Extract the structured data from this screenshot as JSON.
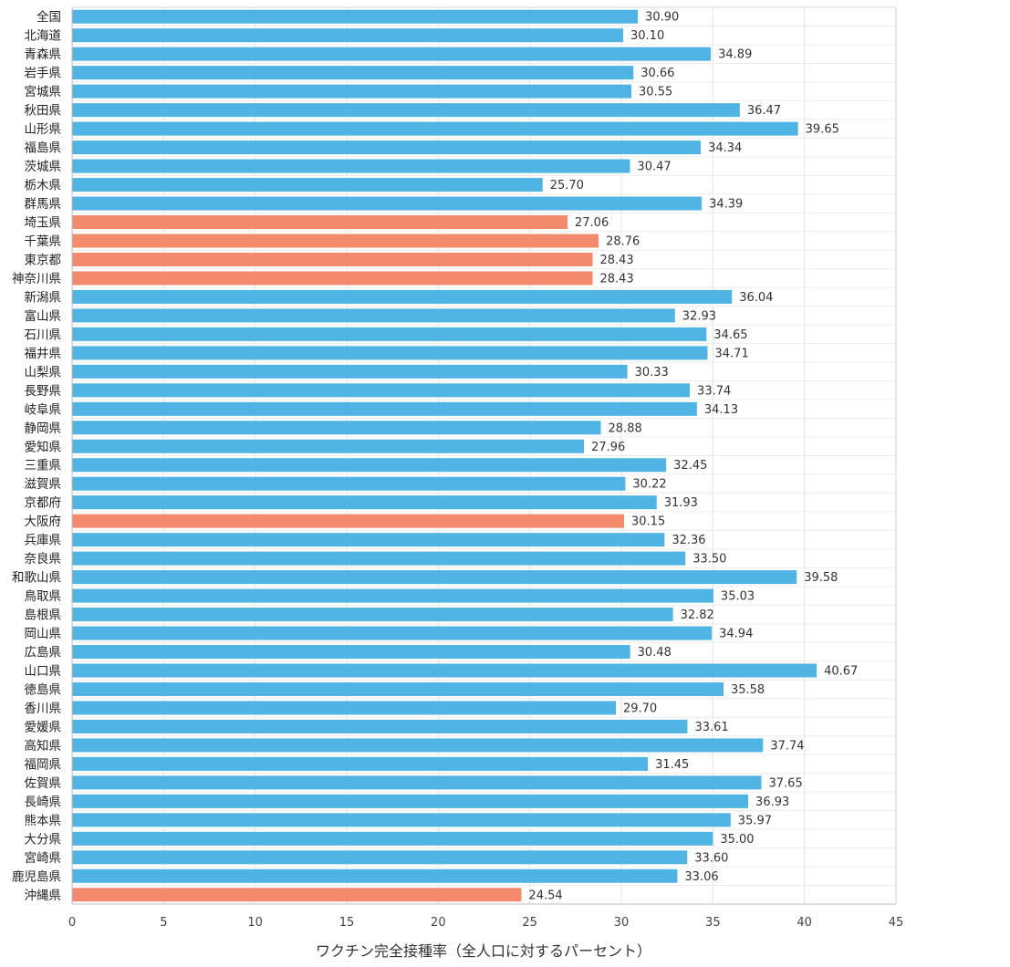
{
  "chart_data": {
    "type": "bar",
    "orientation": "horizontal",
    "xlabel": "ワクチン完全接種率（全人口に対するパーセント）",
    "ylabel": "",
    "title": "",
    "xlim": [
      0,
      45
    ],
    "xticks": [
      0,
      5,
      10,
      15,
      20,
      25,
      30,
      35,
      40,
      45
    ],
    "grid": true,
    "colors": {
      "default": "#4fb3e3",
      "highlight": "#f28a6b"
    },
    "categories": [
      "全国",
      "北海道",
      "青森県",
      "岩手県",
      "宮城県",
      "秋田県",
      "山形県",
      "福島県",
      "茨城県",
      "栃木県",
      "群馬県",
      "埼玉県",
      "千葉県",
      "東京都",
      "神奈川県",
      "新潟県",
      "富山県",
      "石川県",
      "福井県",
      "山梨県",
      "長野県",
      "岐阜県",
      "静岡県",
      "愛知県",
      "三重県",
      "滋賀県",
      "京都府",
      "大阪府",
      "兵庫県",
      "奈良県",
      "和歌山県",
      "鳥取県",
      "島根県",
      "岡山県",
      "広島県",
      "山口県",
      "徳島県",
      "香川県",
      "愛媛県",
      "高知県",
      "福岡県",
      "佐賀県",
      "長崎県",
      "熊本県",
      "大分県",
      "宮崎県",
      "鹿児島県",
      "沖縄県"
    ],
    "values": [
      30.9,
      30.1,
      34.89,
      30.66,
      30.55,
      36.47,
      39.65,
      34.34,
      30.47,
      25.7,
      34.39,
      27.06,
      28.76,
      28.43,
      28.43,
      36.04,
      32.93,
      34.65,
      34.71,
      30.33,
      33.74,
      34.13,
      28.88,
      27.96,
      32.45,
      30.22,
      31.93,
      30.15,
      32.36,
      33.5,
      39.58,
      35.03,
      32.82,
      34.94,
      30.48,
      40.67,
      35.58,
      29.7,
      33.61,
      37.74,
      31.45,
      37.65,
      36.93,
      35.97,
      35.0,
      33.6,
      33.06,
      24.54
    ],
    "value_labels": [
      "30.90",
      "30.10",
      "34.89",
      "30.66",
      "30.55",
      "36.47",
      "39.65",
      "34.34",
      "30.47",
      "25.70",
      "34.39",
      "27.06",
      "28.76",
      "28.43",
      "28.43",
      "36.04",
      "32.93",
      "34.65",
      "34.71",
      "30.33",
      "33.74",
      "34.13",
      "28.88",
      "27.96",
      "32.45",
      "30.22",
      "31.93",
      "30.15",
      "32.36",
      "33.50",
      "39.58",
      "35.03",
      "32.82",
      "34.94",
      "30.48",
      "40.67",
      "35.58",
      "29.70",
      "33.61",
      "37.74",
      "31.45",
      "37.65",
      "36.93",
      "35.97",
      "35.00",
      "33.60",
      "33.06",
      "24.54"
    ],
    "highlighted": [
      "埼玉県",
      "千葉県",
      "東京都",
      "神奈川県",
      "大阪府",
      "沖縄県"
    ]
  }
}
